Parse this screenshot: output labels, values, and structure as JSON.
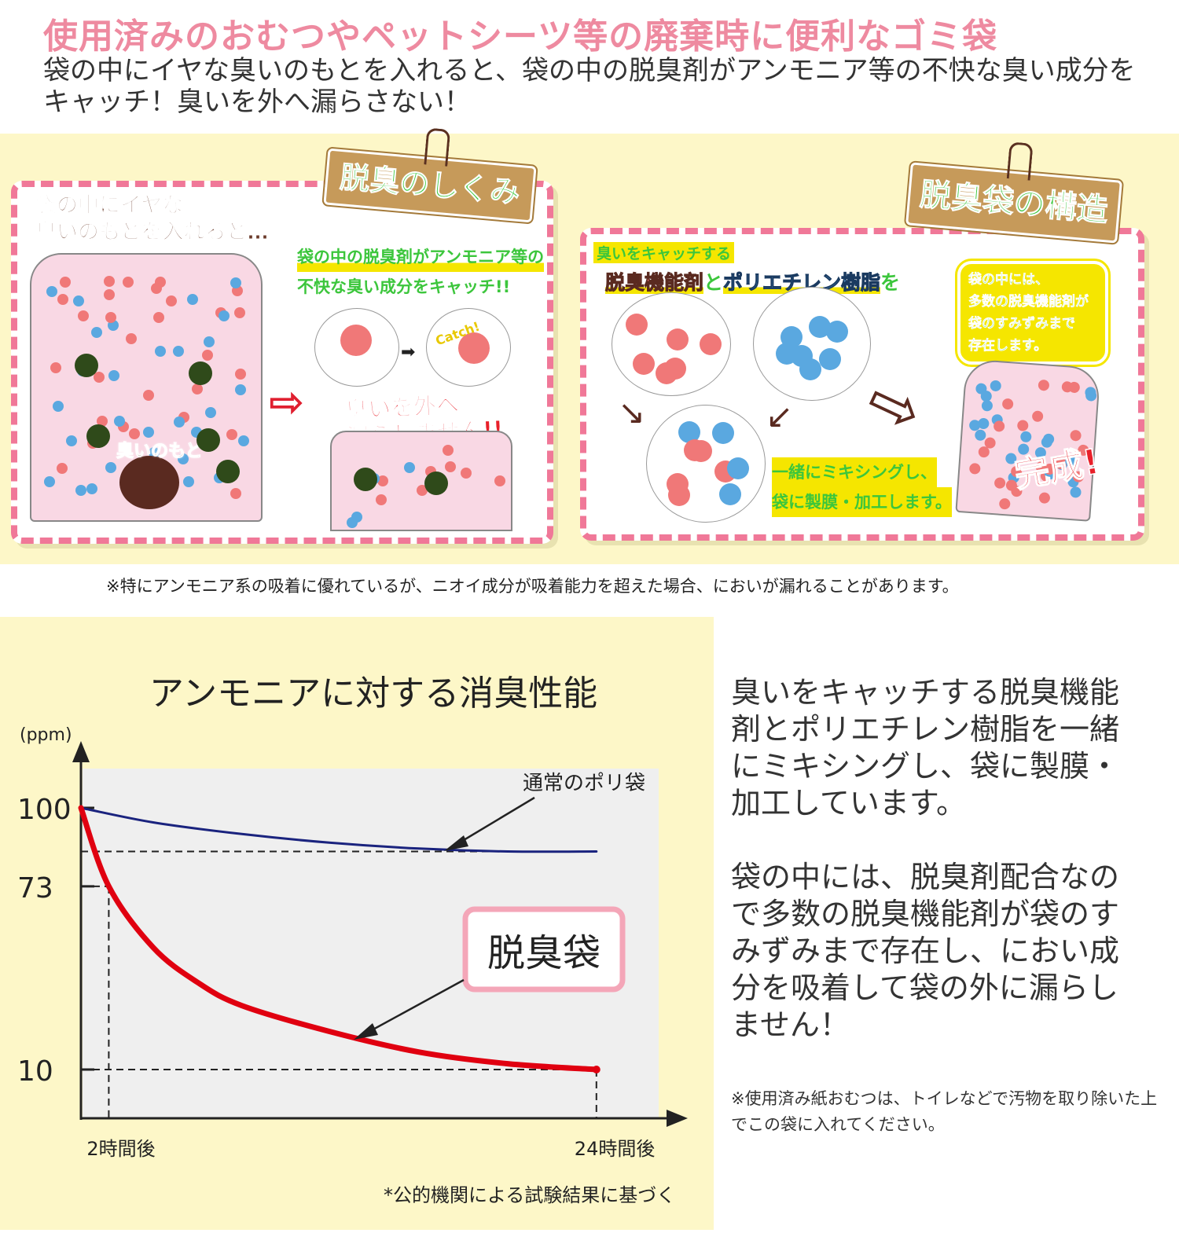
{
  "header": {
    "headline": "使用済みのおむつやペットシーツ等の廃棄時に便利なゴミ袋",
    "subline": "袋の中にイヤな臭いのもとを入れると、袋の中の脱臭剤がアンモニア等の不快な臭い成分をキャッチ！臭いを外へ漏らさない！"
  },
  "panel_left": {
    "tag": "脱臭のしくみ",
    "intro_line1": "袋の中にイヤな",
    "intro_line2": "臭いのもとを入れると…",
    "catch_line1": "袋の中の脱臭剤がアンモニア等の",
    "catch_line2": "不快な臭い成分をキャッチ!!",
    "source_label": "臭いのもと",
    "catch_word": "Catch!",
    "leak_line1": "臭いを外へ",
    "leak_line2": "漏らしません!!"
  },
  "panel_right": {
    "tag": "脱臭袋の構造",
    "kicker": "臭いをキャッチする",
    "agent": "脱臭機能剤",
    "and": "と",
    "resin": "ポリエチレン樹脂",
    "wo": "を",
    "bubble": [
      "袋の中には、",
      "多数の脱臭機能剤が",
      "袋のすみずみまで",
      "存在します。"
    ],
    "mix_line1": "一緒にミキシングし、",
    "mix_line2": "袋に製膜・加工します。",
    "done": "完成!"
  },
  "note_top": "※特にアンモニア系の吸着に優れているが、ニオイ成分が吸着能力を超えた場合、においが漏れることがあります。",
  "colors": {
    "pink": "#f07898",
    "yellow_bg": "#fdf7c8",
    "red_series": "#e00010",
    "blue_series": "#1a237e"
  },
  "chart_data": {
    "type": "line",
    "title": "アンモニアに対する消臭性能",
    "ylabel": "(ppm)",
    "xlabel": "",
    "y_ticks": [
      "100",
      "73",
      "10"
    ],
    "x_ticks": [
      "2時間後",
      "24時間後"
    ],
    "ylim": [
      0,
      100
    ],
    "series": [
      {
        "name": "通常のポリ袋",
        "color": "#1a237e",
        "x": [
          1,
          4,
          8,
          12,
          16,
          20,
          24
        ],
        "y": [
          100,
          95,
          91,
          88,
          86,
          85,
          85
        ]
      },
      {
        "name": "脱臭袋",
        "color": "#e00010",
        "x": [
          1,
          2,
          4,
          6,
          8,
          12,
          16,
          20,
          24
        ],
        "y": [
          100,
          73,
          52,
          40,
          32,
          23,
          16,
          12,
          10
        ]
      }
    ],
    "footnote": "*公的機関による試験結果に基づく"
  },
  "right_text": {
    "para1": "臭いをキャッチする脱臭機能剤とポリエチレン樹脂を一緒にミキシングし、袋に製膜・加工しています。",
    "para2": "袋の中には、脱臭剤配合なので多数の脱臭機能剤が袋のすみずみまで存在し、におい成分を吸着して袋の外に漏らしません！",
    "note": "※使用済み紙おむつは、トイレなどで汚物を取り除いた上でこの袋に入れてください。"
  }
}
